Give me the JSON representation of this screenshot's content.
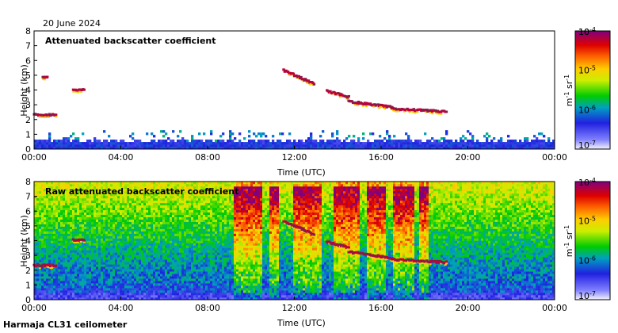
{
  "date_label": "20 June 2024",
  "footer_label": "Harmaja CL31 ceilometer",
  "colors": {
    "background_clear": "#ffffff",
    "low_signal": "#2222dd",
    "mid_signal": "#22bb22",
    "high_signal": "#ffdd00",
    "peak_signal": "#cc0000",
    "max_signal": "#880044"
  },
  "chart_data": [
    {
      "type": "heatmap",
      "title": "Attenuated backscatter coefficient",
      "xlabel": "Time (UTC)",
      "ylabel": "Height (km)",
      "x_ticks": [
        "00:00",
        "04:00",
        "08:00",
        "12:00",
        "16:00",
        "20:00",
        "00:00"
      ],
      "y_ticks": [
        "0",
        "1",
        "2",
        "3",
        "4",
        "5",
        "6",
        "7",
        "8"
      ],
      "xlim_hours": [
        0,
        24
      ],
      "ylim_km": [
        0,
        8
      ],
      "colorbar": {
        "label": "m-1 sr-1",
        "ticks": [
          "10-4",
          "10-5",
          "10-6",
          "10-7"
        ],
        "scale": "log",
        "range": [
          1e-07,
          0.0001
        ]
      },
      "boundary_layer_top_km": 0.6,
      "cloud_layers": [
        {
          "t_start": 0.0,
          "t_end": 1.0,
          "h_km": 2.3
        },
        {
          "t_start": 0.4,
          "t_end": 0.6,
          "h_km": 4.8
        },
        {
          "t_start": 1.8,
          "t_end": 2.3,
          "h_km": 4.0
        },
        {
          "t_start": 11.5,
          "t_end": 12.9,
          "h_km": 5.3,
          "h_end_km": 4.4
        },
        {
          "t_start": 13.5,
          "t_end": 14.5,
          "h_km": 3.9,
          "h_end_km": 3.5
        },
        {
          "t_start": 14.5,
          "t_end": 16.5,
          "h_km": 3.2,
          "h_end_km": 2.8
        },
        {
          "t_start": 16.5,
          "t_end": 19.0,
          "h_km": 2.7,
          "h_end_km": 2.5
        }
      ]
    },
    {
      "type": "heatmap",
      "title": "Raw attenuated backscatter coefficient",
      "xlabel": "Time (UTC)",
      "ylabel": "Height (km)",
      "x_ticks": [
        "00:00",
        "04:00",
        "08:00",
        "12:00",
        "16:00",
        "20:00",
        "00:00"
      ],
      "y_ticks": [
        "0",
        "1",
        "2",
        "3",
        "4",
        "5",
        "6",
        "7",
        "8"
      ],
      "xlim_hours": [
        0,
        24
      ],
      "ylim_km": [
        0,
        8
      ],
      "colorbar": {
        "label": "m-1 sr-1",
        "ticks": [
          "10-4",
          "10-5",
          "10-6",
          "10-7"
        ],
        "scale": "log",
        "range": [
          1e-07,
          0.0001
        ]
      },
      "noisy_periods_hours": [
        [
          9.2,
          10.5
        ],
        [
          10.8,
          11.3
        ],
        [
          12.0,
          13.3
        ],
        [
          13.8,
          15.0
        ],
        [
          15.3,
          16.2
        ],
        [
          16.5,
          17.5
        ],
        [
          17.8,
          18.2
        ]
      ],
      "cloud_layers": [
        {
          "t_start": 0.0,
          "t_end": 1.0,
          "h_km": 2.3
        },
        {
          "t_start": 1.8,
          "t_end": 2.3,
          "h_km": 4.0
        },
        {
          "t_start": 11.5,
          "t_end": 12.9,
          "h_km": 5.3,
          "h_end_km": 4.4
        },
        {
          "t_start": 13.5,
          "t_end": 14.5,
          "h_km": 3.9,
          "h_end_km": 3.5
        },
        {
          "t_start": 14.5,
          "t_end": 16.5,
          "h_km": 3.2,
          "h_end_km": 2.8
        },
        {
          "t_start": 16.5,
          "t_end": 19.0,
          "h_km": 2.7,
          "h_end_km": 2.5
        }
      ]
    }
  ]
}
